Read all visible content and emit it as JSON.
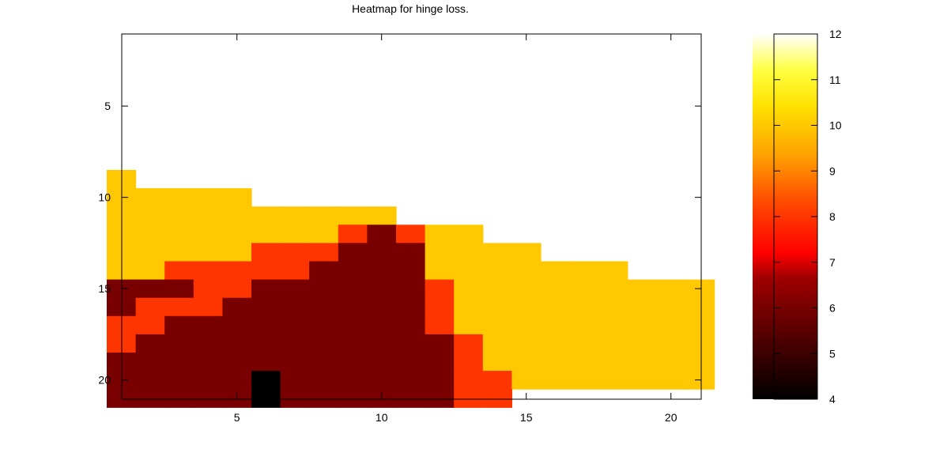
{
  "chart_data": {
    "type": "heatmap",
    "title": "Heatmap for hinge loss.",
    "xlabel": "",
    "ylabel": "",
    "xlim": [
      0.5,
      21.5
    ],
    "ylim": [
      21.5,
      0.5
    ],
    "x_ticks": [
      5,
      10,
      15,
      20
    ],
    "y_ticks": [
      5,
      10,
      15,
      20
    ],
    "colorbar": {
      "range": [
        4,
        12
      ],
      "ticks": [
        4,
        5,
        6,
        7,
        8,
        9,
        10,
        11,
        12
      ],
      "palette": "hot"
    },
    "rows_start": 9,
    "rows_end": 21,
    "columns": 21,
    "null_value": 12,
    "grid": [
      [
        10,
        null,
        null,
        null,
        null,
        null,
        null,
        null,
        null,
        null,
        null,
        null,
        null,
        null,
        null,
        null,
        null,
        null,
        null,
        null,
        null
      ],
      [
        10,
        10,
        10,
        10,
        10,
        null,
        null,
        null,
        null,
        null,
        null,
        null,
        null,
        null,
        null,
        null,
        null,
        null,
        null,
        null,
        null
      ],
      [
        10,
        10,
        10,
        10,
        10,
        10,
        10,
        10,
        10,
        10,
        null,
        null,
        null,
        null,
        null,
        null,
        null,
        null,
        null,
        null,
        null
      ],
      [
        10,
        10,
        10,
        10,
        10,
        10,
        10,
        10,
        8,
        6,
        8,
        10,
        10,
        null,
        null,
        null,
        null,
        null,
        null,
        null,
        null
      ],
      [
        10,
        10,
        10,
        10,
        10,
        8,
        8,
        8,
        6,
        6,
        6,
        10,
        10,
        10,
        10,
        null,
        null,
        null,
        null,
        null,
        null
      ],
      [
        10,
        10,
        8,
        8,
        8,
        8,
        8,
        6,
        6,
        6,
        6,
        10,
        10,
        10,
        10,
        10,
        10,
        10,
        null,
        null,
        null
      ],
      [
        6,
        6,
        6,
        8,
        8,
        6,
        6,
        6,
        6,
        6,
        6,
        8,
        10,
        10,
        10,
        10,
        10,
        10,
        10,
        10,
        10
      ],
      [
        6,
        8,
        8,
        8,
        6,
        6,
        6,
        6,
        6,
        6,
        6,
        8,
        10,
        10,
        10,
        10,
        10,
        10,
        10,
        10,
        10
      ],
      [
        8,
        8,
        6,
        6,
        6,
        6,
        6,
        6,
        6,
        6,
        6,
        8,
        10,
        10,
        10,
        10,
        10,
        10,
        10,
        10,
        10
      ],
      [
        8,
        6,
        6,
        6,
        6,
        6,
        6,
        6,
        6,
        6,
        6,
        6,
        8,
        10,
        10,
        10,
        10,
        10,
        10,
        10,
        10
      ],
      [
        6,
        6,
        6,
        6,
        6,
        6,
        6,
        6,
        6,
        6,
        6,
        6,
        8,
        10,
        10,
        10,
        10,
        10,
        10,
        10,
        10
      ],
      [
        6,
        6,
        6,
        6,
        6,
        4,
        6,
        6,
        6,
        6,
        6,
        6,
        8,
        8,
        10,
        10,
        10,
        10,
        10,
        10,
        10
      ],
      [
        6,
        6,
        6,
        6,
        6,
        4,
        6,
        6,
        6,
        6,
        6,
        6,
        8,
        8,
        null,
        null,
        null,
        null,
        null,
        null,
        null
      ]
    ]
  }
}
